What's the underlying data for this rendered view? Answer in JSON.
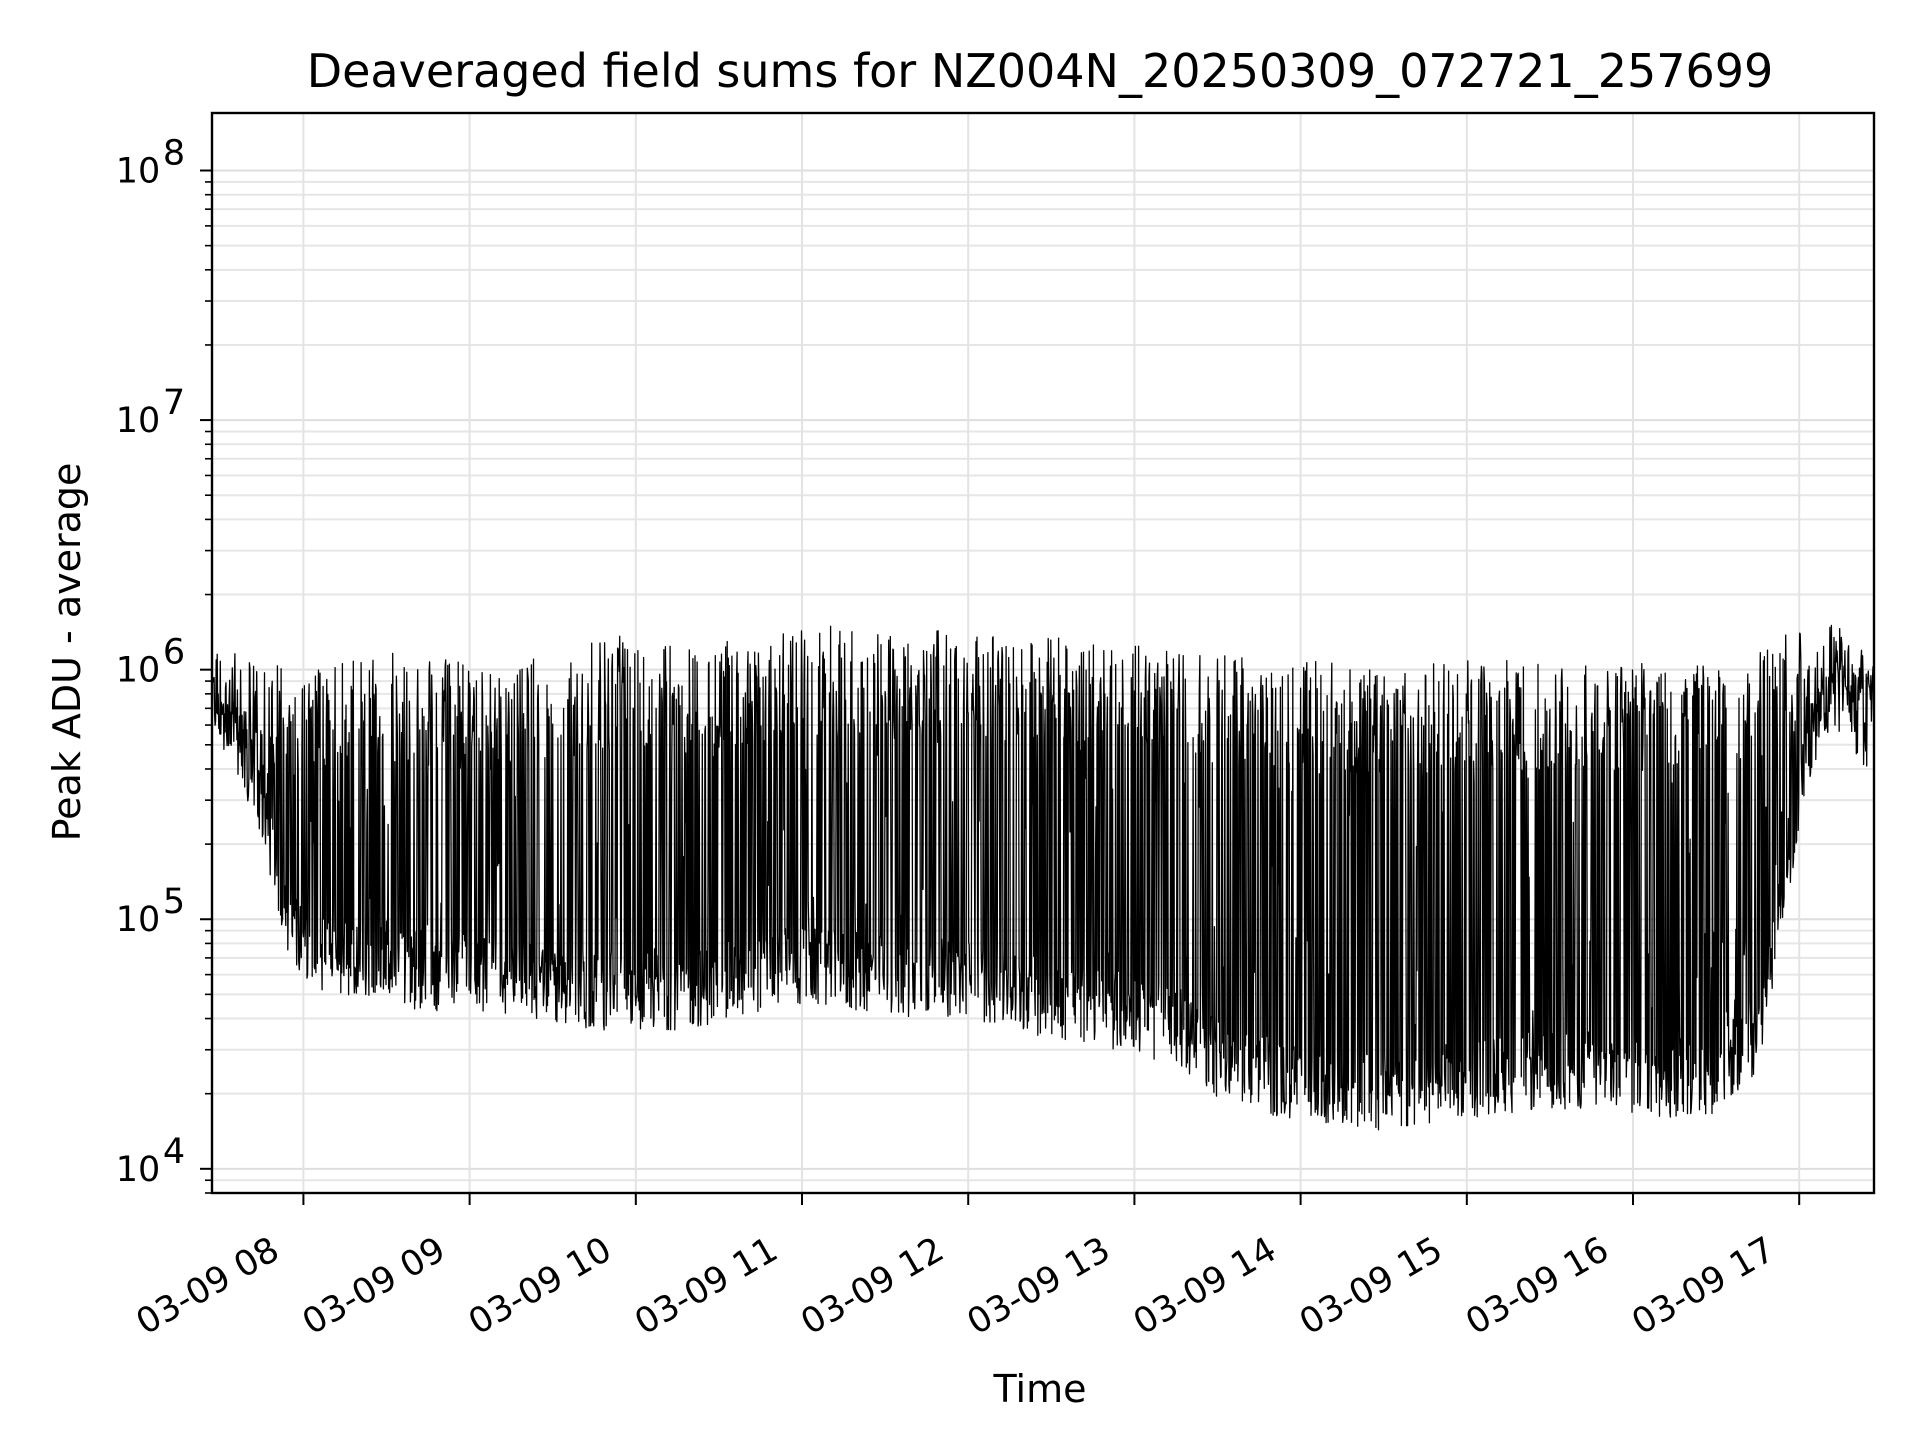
{
  "chart_data": {
    "type": "line",
    "title": "Deaveraged field sums for NZ004N_20250309_072721_257699",
    "xlabel": "Time",
    "ylabel": "Peak ADU - average",
    "y_scale": "log",
    "ylim": [
      8000,
      170000000
    ],
    "xlim": [
      "03-09 07:27",
      "03-09 17:27"
    ],
    "grid": true,
    "grid_minor": true,
    "x_ticks": [
      "03-09 08",
      "03-09 09",
      "03-09 10",
      "03-09 11",
      "03-09 12",
      "03-09 13",
      "03-09 14",
      "03-09 15",
      "03-09 16",
      "03-09 17"
    ],
    "y_ticks": [
      {
        "value": 10000,
        "base": "10",
        "exp": "4"
      },
      {
        "value": 100000,
        "base": "10",
        "exp": "5"
      },
      {
        "value": 1000000,
        "base": "10",
        "exp": "6"
      },
      {
        "value": 10000000,
        "base": "10",
        "exp": "7"
      },
      {
        "value": 100000000,
        "base": "10",
        "exp": "8"
      }
    ],
    "line_color": "#000000",
    "series": [
      {
        "x": [
          "03-09 07:27",
          "03-09 07:35",
          "03-09 07:45",
          "03-09 07:55",
          "03-09 08:05",
          "03-09 08:15",
          "03-09 08:30",
          "03-09 08:45",
          "03-09 09:00",
          "03-09 09:15",
          "03-09 09:30",
          "03-09 09:45",
          "03-09 10:00",
          "03-09 10:15",
          "03-09 10:30",
          "03-09 10:45",
          "03-09 11:00",
          "03-09 11:15",
          "03-09 11:30",
          "03-09 11:45",
          "03-09 12:00",
          "03-09 12:15",
          "03-09 12:30",
          "03-09 12:45",
          "03-09 13:00",
          "03-09 13:15",
          "03-09 13:30",
          "03-09 13:45",
          "03-09 14:00",
          "03-09 14:15",
          "03-09 14:30",
          "03-09 14:45",
          "03-09 15:00",
          "03-09 15:15",
          "03-09 15:30",
          "03-09 15:45",
          "03-09 16:00",
          "03-09 16:15",
          "03-09 16:30",
          "03-09 16:45",
          "03-09 16:55",
          "03-09 17:05",
          "03-09 17:15",
          "03-09 17:27"
        ],
        "baseline": [
          900000,
          600000,
          300000,
          90000,
          75000,
          70000,
          65000,
          62000,
          62000,
          58000,
          55000,
          52000,
          52000,
          52000,
          55000,
          62000,
          65000,
          62000,
          60000,
          58000,
          58000,
          52000,
          48000,
          45000,
          42000,
          36000,
          28000,
          24000,
          22000,
          21000,
          20000,
          21000,
          23000,
          24000,
          25000,
          25000,
          24000,
          23000,
          24000,
          35000,
          150000,
          600000,
          900000,
          800000
        ],
        "peak": [
          1300000,
          1300000,
          1100000,
          1000000,
          1000000,
          1100000,
          1200000,
          1100000,
          1100000,
          1000000,
          1200000,
          1300000,
          1400000,
          1300000,
          1300000,
          1400000,
          1500000,
          1500000,
          1450000,
          1450000,
          1400000,
          1400000,
          1350000,
          1300000,
          1250000,
          1200000,
          1150000,
          1100000,
          1100000,
          1050000,
          1050000,
          1050000,
          1100000,
          1100000,
          1100000,
          1100000,
          1100000,
          1100000,
          1150000,
          1200000,
          1400000,
          1600000,
          1500000,
          1000000
        ],
        "min_observed": 13000,
        "max_observed": 2300000
      }
    ]
  }
}
